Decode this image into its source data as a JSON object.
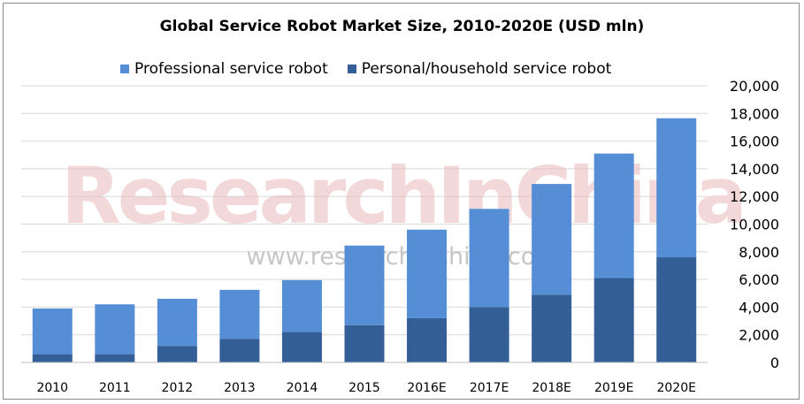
{
  "chart_data": {
    "type": "bar",
    "stacked": true,
    "title": "Global Service Robot Market Size, 2010-2020E (USD mln)",
    "categories": [
      "2010",
      "2011",
      "2012",
      "2013",
      "2014",
      "2015",
      "2016E",
      "2017E",
      "2018E",
      "2019E",
      "2020E"
    ],
    "series": [
      {
        "name": "Personal/household service robot",
        "color": "#345e96",
        "values": [
          600,
          600,
          1200,
          1700,
          2200,
          2700,
          3200,
          4000,
          4900,
          6100,
          7600
        ]
      },
      {
        "name": "Professional service robot",
        "color": "#558ed5",
        "values": [
          3300,
          3600,
          3400,
          3550,
          3750,
          5750,
          6400,
          7100,
          8000,
          9000,
          10050
        ]
      }
    ],
    "legend_order": [
      "Professional service robot",
      "Personal/household service robot"
    ],
    "legend_position": "top",
    "y_axis_position": "right",
    "ylim": [
      0,
      20000
    ],
    "yticks": [
      "0",
      "2,000",
      "4,000",
      "6,000",
      "8,000",
      "10,000",
      "12,000",
      "14,000",
      "16,000",
      "18,000",
      "20,000"
    ],
    "grid": true,
    "xlabel": "",
    "ylabel": ""
  },
  "watermark": {
    "brand": "ResearchInChina",
    "url": "www.researchinchina.com"
  }
}
